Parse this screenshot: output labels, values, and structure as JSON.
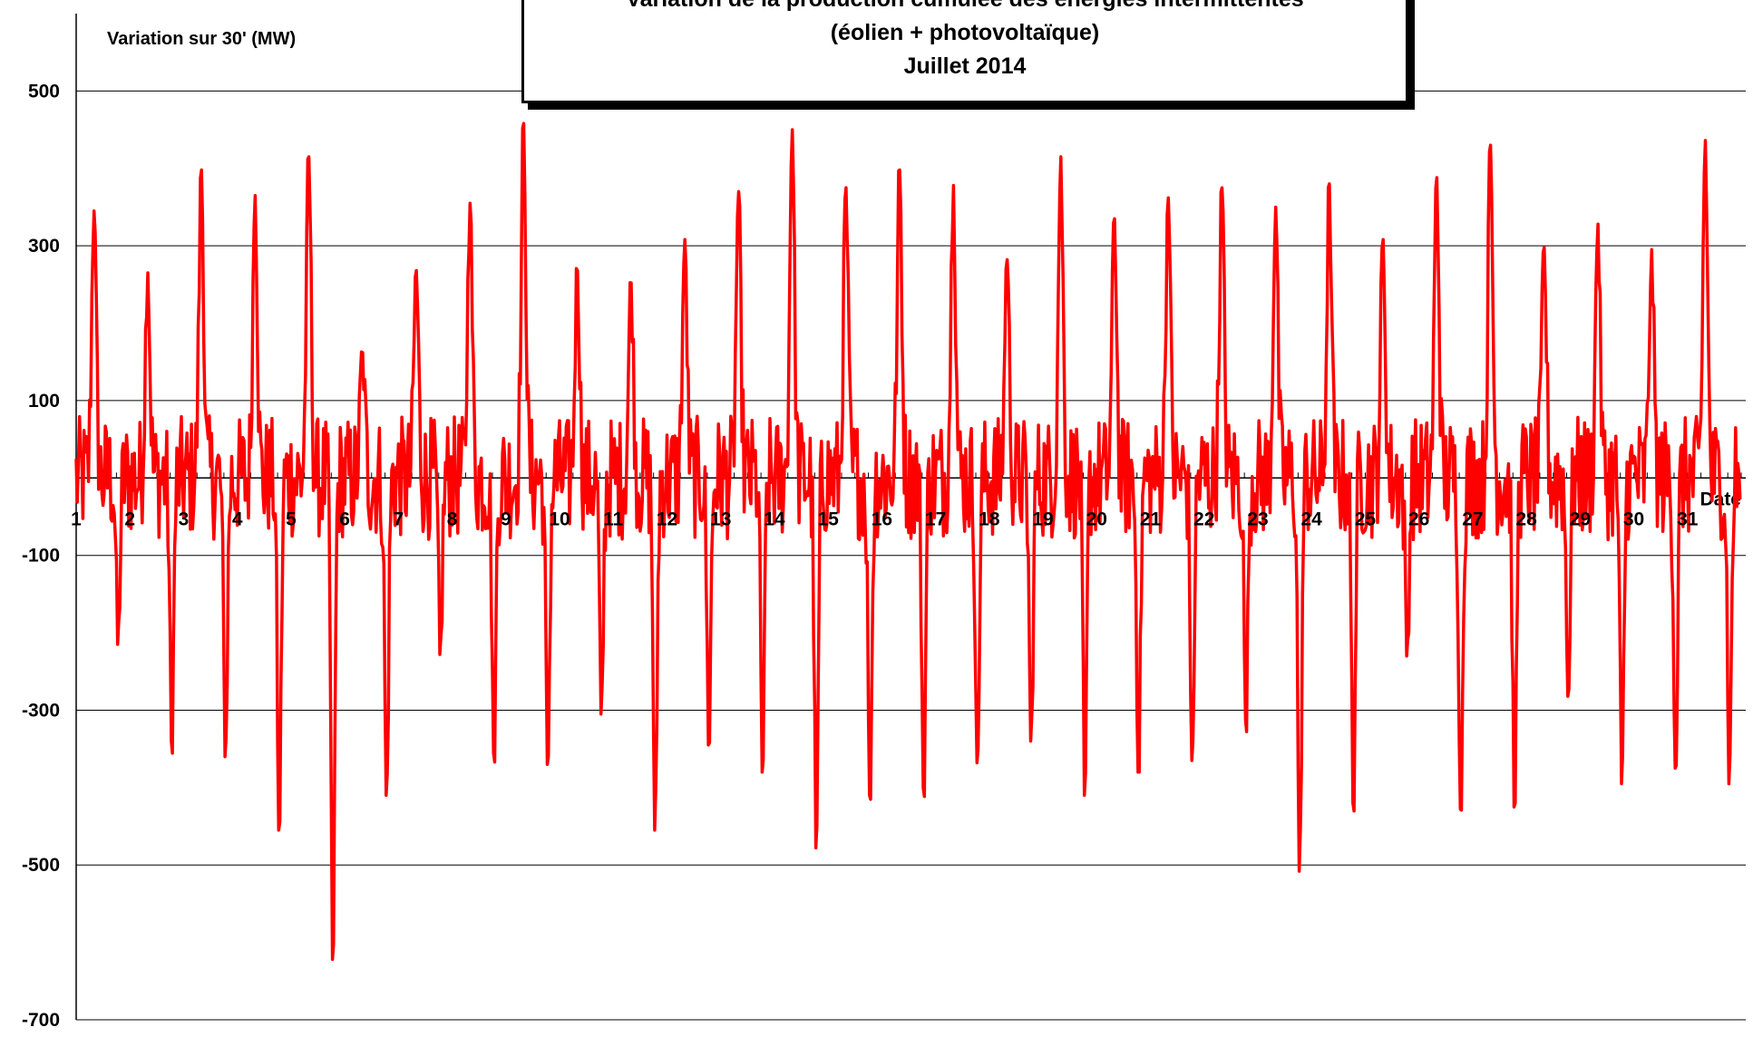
{
  "chart_data": {
    "type": "line",
    "title_lines": [
      "Variation de la production cumulée des énergies intermittentes",
      "(éolien + photovoltaïque)",
      "Juillet 2014"
    ],
    "ylabel": "Variation sur 30' (MW)",
    "xlabel": "Date",
    "ylim": [
      -700,
      600
    ],
    "yticks": [
      "500",
      "300",
      "100",
      "-100",
      "-300",
      "-500",
      "-700"
    ],
    "grid": true,
    "line_color": "#ff0000",
    "categories": [
      "1",
      "2",
      "3",
      "4",
      "5",
      "6",
      "7",
      "8",
      "9",
      "10",
      "11",
      "12",
      "13",
      "14",
      "15",
      "16",
      "17",
      "18",
      "19",
      "20",
      "21",
      "22",
      "23",
      "24",
      "25",
      "26",
      "27",
      "28",
      "29",
      "30",
      "31"
    ],
    "series": [
      {
        "daily_peak_max": [
          345,
          265,
          398,
          365,
          415,
          162,
          268,
          355,
          458,
          268,
          252,
          308,
          370,
          450,
          375,
          398,
          378,
          282,
          415,
          335,
          362,
          375,
          350,
          380,
          308,
          388,
          430,
          298,
          328,
          295,
          436
        ],
        "daily_peak_min": [
          -215,
          -340,
          -360,
          -455,
          -622,
          -410,
          -228,
          -355,
          -370,
          -305,
          -455,
          -345,
          -380,
          -478,
          -410,
          -400,
          -368,
          -340,
          -410,
          -380,
          -365,
          -312,
          -508,
          -420,
          -230,
          -428,
          -425,
          -282,
          -395,
          -375,
          -395
        ]
      }
    ]
  }
}
